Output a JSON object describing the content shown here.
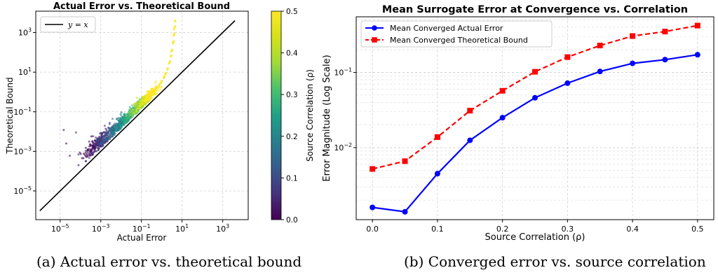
{
  "chart_data": [
    {
      "type": "scatter",
      "title": "Actual Error vs. Theoretical Bound",
      "xlabel": "Actual Error",
      "ylabel": "Theoretical Bound",
      "xscale": "log",
      "yscale": "log",
      "xlim": [
        6.31e-07,
        18000
      ],
      "ylim": [
        3.55e-07,
        12000
      ],
      "xticks": [
        {
          "v": 1e-05,
          "label": "10",
          "exp": "−5"
        },
        {
          "v": 0.001,
          "label": "10",
          "exp": "−3"
        },
        {
          "v": 0.1,
          "label": "10",
          "exp": "−1"
        },
        {
          "v": 10,
          "label": "10",
          "exp": "1"
        },
        {
          "v": 1000,
          "label": "10",
          "exp": "3"
        }
      ],
      "yticks": [
        {
          "v": 1e-05,
          "label": "10",
          "exp": "−5"
        },
        {
          "v": 0.001,
          "label": "10",
          "exp": "−3"
        },
        {
          "v": 0.1,
          "label": "10",
          "exp": "−1"
        },
        {
          "v": 10,
          "label": "10",
          "exp": "1"
        },
        {
          "v": 1000,
          "label": "10",
          "exp": "3"
        }
      ],
      "grid": true,
      "legend": {
        "position": "top-left",
        "entries": [
          {
            "label": "y = x",
            "type": "line",
            "color": "#000000"
          }
        ]
      },
      "reference_line": {
        "name": "y = x",
        "x": [
          1e-06,
          4000
        ],
        "y": [
          1e-06,
          4000
        ]
      },
      "colorbar": {
        "label": "Source Correlation (ρ)",
        "colormap": "viridis",
        "range": [
          0.0,
          0.5
        ],
        "ticks": [
          "0.0",
          "0.1",
          "0.2",
          "0.3",
          "0.4",
          "0.5"
        ]
      },
      "point_clusters": [
        {
          "rho": 0.0,
          "center": [
            0.0005,
            0.002
          ],
          "x_spread_decades": 0.55,
          "y_spread_decades": 0.5
        },
        {
          "rho": 0.05,
          "center": [
            0.0009,
            0.003
          ],
          "x_spread_decades": 0.55,
          "y_spread_decades": 0.5
        },
        {
          "rho": 0.1,
          "center": [
            0.002,
            0.006
          ],
          "x_spread_decades": 0.5,
          "y_spread_decades": 0.45
        },
        {
          "rho": 0.15,
          "center": [
            0.005,
            0.012
          ],
          "x_spread_decades": 0.5,
          "y_spread_decades": 0.45
        },
        {
          "rho": 0.2,
          "center": [
            0.01,
            0.025
          ],
          "x_spread_decades": 0.45,
          "y_spread_decades": 0.4
        },
        {
          "rho": 0.25,
          "center": [
            0.02,
            0.05
          ],
          "x_spread_decades": 0.45,
          "y_spread_decades": 0.4
        },
        {
          "rho": 0.3,
          "center": [
            0.04,
            0.1
          ],
          "x_spread_decades": 0.4,
          "y_spread_decades": 0.35
        },
        {
          "rho": 0.35,
          "center": [
            0.07,
            0.18
          ],
          "x_spread_decades": 0.4,
          "y_spread_decades": 0.35
        },
        {
          "rho": 0.4,
          "center": [
            0.12,
            0.3
          ],
          "x_spread_decades": 0.35,
          "y_spread_decades": 0.3
        },
        {
          "rho": 0.45,
          "center": [
            0.2,
            0.5
          ],
          "x_spread_decades": 0.35,
          "y_spread_decades": 0.3
        },
        {
          "rho": 0.5,
          "center": [
            0.3,
            0.8
          ],
          "x_spread_decades": 0.35,
          "y_spread_decades": 0.3
        }
      ],
      "tail_points": {
        "rho": 0.5,
        "x": [
          0.5,
          0.8,
          1.0,
          1.3,
          1.6,
          2.0,
          2.4,
          2.8,
          3.2,
          3.6,
          4.0,
          4.3,
          4.6
        ],
        "y": [
          1.5,
          2.5,
          3.5,
          5.5,
          9.0,
          16,
          30,
          60,
          130,
          300,
          800,
          1800,
          4000
        ]
      },
      "outliers": [
        {
          "x": 2e-05,
          "y": 0.0025,
          "rho": 0.0
        },
        {
          "x": 3e-05,
          "y": 0.0006,
          "rho": 0.0
        },
        {
          "x": 6e-05,
          "y": 0.009,
          "rho": 0.05
        },
        {
          "x": 8e-05,
          "y": 0.0002,
          "rho": 0.0
        },
        {
          "x": 1.5e-05,
          "y": 0.012,
          "rho": 0.0
        }
      ]
    },
    {
      "type": "line",
      "title": "Mean Surrogate Error at Convergence vs. Correlation",
      "xlabel": "Source Correlation (ρ)",
      "ylabel": "Error Magnitude (Log Scale)",
      "yscale": "log",
      "xlim": [
        -0.025,
        0.525
      ],
      "ylim": [
        0.0011,
        0.55
      ],
      "xticks": [
        "0.0",
        "0.1",
        "0.2",
        "0.3",
        "0.4",
        "0.5"
      ],
      "yticks": [
        {
          "v": 0.01,
          "label": "10",
          "exp": "−2"
        },
        {
          "v": 0.1,
          "label": "10",
          "exp": "−1"
        }
      ],
      "grid": true,
      "legend": {
        "position": "top-left"
      },
      "x": [
        0.0,
        0.05,
        0.1,
        0.15,
        0.2,
        0.25,
        0.3,
        0.35,
        0.4,
        0.45,
        0.5
      ],
      "series": [
        {
          "name": "Mean Converged Actual Error",
          "color": "#0000ff",
          "marker": "circle",
          "linestyle": "solid",
          "values": [
            0.0016,
            0.0014,
            0.0045,
            0.0125,
            0.025,
            0.046,
            0.072,
            0.103,
            0.132,
            0.148,
            0.172
          ]
        },
        {
          "name": "Mean Converged Theoretical Bound",
          "color": "#ff0000",
          "marker": "square",
          "linestyle": "dashed",
          "values": [
            0.0052,
            0.0066,
            0.0138,
            0.031,
            0.057,
            0.102,
            0.16,
            0.228,
            0.305,
            0.35,
            0.42
          ]
        }
      ]
    }
  ],
  "captions": {
    "left": "(a) Actual error vs. theoretical bound",
    "right": "(b) Converged error vs. source correlation"
  }
}
